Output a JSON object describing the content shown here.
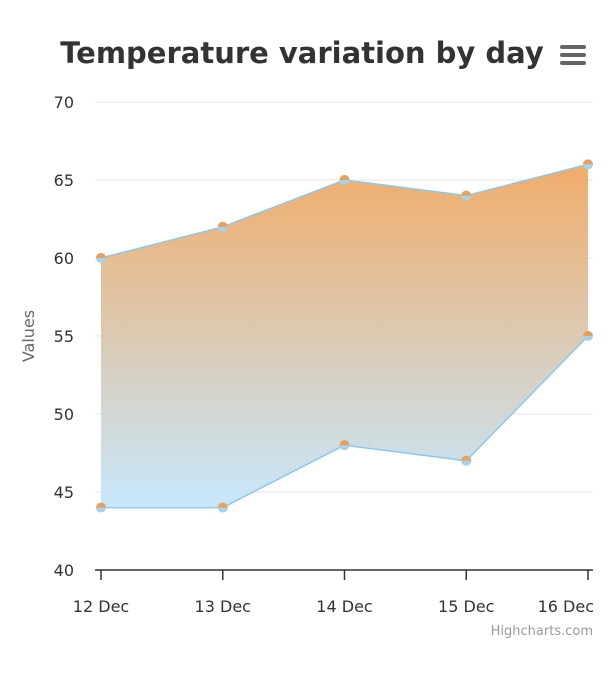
{
  "chart_data": {
    "type": "arearange",
    "title": "Temperature variation by day",
    "ylabel": "Values",
    "xlabel": "",
    "categories": [
      "12 Dec",
      "13 Dec",
      "14 Dec",
      "15 Dec",
      "16 Dec"
    ],
    "yticks": [
      "40",
      "45",
      "50",
      "55",
      "60",
      "65",
      "70"
    ],
    "ylim": [
      40,
      70
    ],
    "grid": true,
    "legend": "none",
    "series": [
      {
        "low": [
          44,
          44,
          48,
          47,
          55
        ],
        "high": [
          60,
          62,
          65,
          64,
          66
        ]
      }
    ],
    "colors": {
      "top": "#f0a862",
      "bottom": "#c4e6fc",
      "line": "#8cc8ec",
      "marker_top": "#e8a05a",
      "marker_bottom": "#a8d2ec"
    }
  },
  "menu": {
    "icon": "hamburger-menu-icon"
  },
  "credits": "Highcharts.com"
}
